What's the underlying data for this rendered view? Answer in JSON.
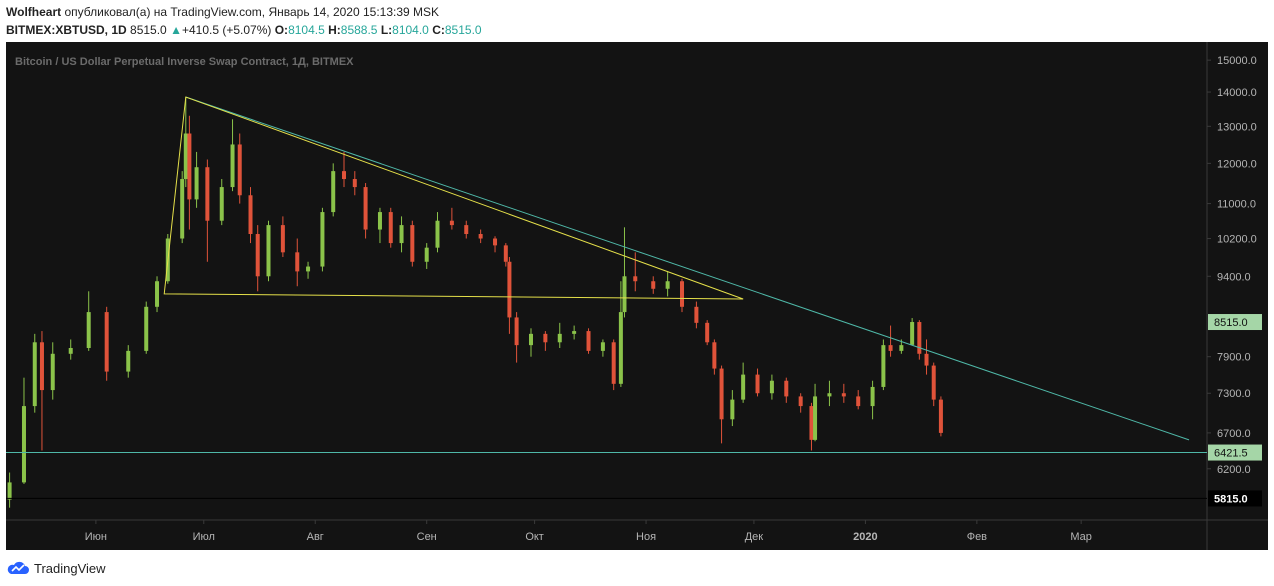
{
  "header": {
    "author": "Wolfheart",
    "published_text": "опубликовал(а) на TradingView.com, Январь 14, 2020 15:13:39 MSK",
    "symbol": "BITMEX:XBTUSD, 1D",
    "last": "8515.0",
    "change_arrow": "▲",
    "change": "+410.5 (+5.07%)",
    "o_label": "O:",
    "o": "8104.5",
    "h_label": "H:",
    "h": "8588.5",
    "l_label": "L:",
    "l": "8104.0",
    "c_label": "C:",
    "c": "8515.0"
  },
  "footer": {
    "brand": "TradingView",
    "logo_icon": "tradingview-cloud-icon"
  },
  "colors": {
    "background": "#131313",
    "up": "#8bc34a",
    "down": "#e0533a",
    "trend_teal": "#4fb8a8",
    "triangle_yellow": "#e5e04a",
    "last_price_bg": "#a5d6a7",
    "support_bg": "#a5d6a7",
    "black_level_bg": "#000000",
    "axis_text": "#b5b5b5",
    "title_text": "#6b6b6b"
  },
  "chart_data": {
    "type": "candlestick",
    "title": "Bitcoin / US Dollar Perpetual Inverse Swap Contract, 1Д, BITMEX",
    "y_scale": "log",
    "ylim": [
      5550,
      15600
    ],
    "y_ticks": [
      6200,
      6700,
      7300,
      7900,
      8515,
      9400,
      10200,
      11000,
      12000,
      13000,
      14000,
      15000
    ],
    "y_tick_labels": [
      "6200.0",
      "6700.0",
      "7300.0",
      "7900.0",
      "8515.0",
      "9400.0",
      "10200.0",
      "11000.0",
      "12000.0",
      "13000.0",
      "14000.0",
      "15000.0"
    ],
    "x_range": [
      "2019-05-07",
      "2020-04-05"
    ],
    "x_ticks": [
      "2019-06-01",
      "2019-07-01",
      "2019-08-01",
      "2019-09-01",
      "2019-10-01",
      "2019-11-01",
      "2019-12-01",
      "2020-01-01",
      "2020-02-01",
      "2020-03-01"
    ],
    "x_tick_labels": [
      "Июн",
      "Июл",
      "Авг",
      "Сен",
      "Окт",
      "Ноя",
      "Дек",
      "2020",
      "Фев",
      "Мар"
    ],
    "candles": [
      {
        "date": "2019-05-08",
        "o": 5800,
        "h": 6150,
        "l": 5700,
        "c": 6020
      },
      {
        "date": "2019-05-12",
        "o": 6020,
        "h": 7550,
        "l": 6000,
        "c": 7100
      },
      {
        "date": "2019-05-15",
        "o": 7100,
        "h": 8300,
        "l": 7000,
        "c": 8150
      },
      {
        "date": "2019-05-17",
        "o": 8150,
        "h": 8350,
        "l": 6450,
        "c": 7350
      },
      {
        "date": "2019-05-20",
        "o": 7350,
        "h": 8150,
        "l": 7200,
        "c": 7950
      },
      {
        "date": "2019-05-25",
        "o": 7950,
        "h": 8200,
        "l": 7850,
        "c": 8050
      },
      {
        "date": "2019-05-30",
        "o": 8050,
        "h": 9100,
        "l": 8000,
        "c": 8700
      },
      {
        "date": "2019-06-04",
        "o": 8700,
        "h": 8800,
        "l": 7500,
        "c": 7650
      },
      {
        "date": "2019-06-10",
        "o": 7650,
        "h": 8100,
        "l": 7550,
        "c": 8000
      },
      {
        "date": "2019-06-15",
        "o": 8000,
        "h": 8900,
        "l": 7950,
        "c": 8800
      },
      {
        "date": "2019-06-18",
        "o": 8800,
        "h": 9400,
        "l": 8700,
        "c": 9300
      },
      {
        "date": "2019-06-21",
        "o": 9300,
        "h": 10300,
        "l": 9250,
        "c": 10200
      },
      {
        "date": "2019-06-25",
        "o": 10200,
        "h": 11800,
        "l": 10100,
        "c": 11600
      },
      {
        "date": "2019-06-26",
        "o": 11600,
        "h": 13850,
        "l": 11400,
        "c": 12800
      },
      {
        "date": "2019-06-27",
        "o": 12800,
        "h": 13300,
        "l": 10400,
        "c": 11100
      },
      {
        "date": "2019-06-29",
        "o": 11100,
        "h": 12300,
        "l": 10900,
        "c": 11900
      },
      {
        "date": "2019-07-02",
        "o": 11900,
        "h": 12100,
        "l": 9700,
        "c": 10600
      },
      {
        "date": "2019-07-06",
        "o": 10600,
        "h": 11600,
        "l": 10500,
        "c": 11400
      },
      {
        "date": "2019-07-09",
        "o": 11400,
        "h": 13200,
        "l": 11300,
        "c": 12500
      },
      {
        "date": "2019-07-11",
        "o": 12500,
        "h": 12800,
        "l": 11000,
        "c": 11200
      },
      {
        "date": "2019-07-14",
        "o": 11200,
        "h": 11400,
        "l": 10100,
        "c": 10300
      },
      {
        "date": "2019-07-16",
        "o": 10300,
        "h": 10500,
        "l": 9100,
        "c": 9400
      },
      {
        "date": "2019-07-19",
        "o": 9400,
        "h": 10600,
        "l": 9300,
        "c": 10500
      },
      {
        "date": "2019-07-23",
        "o": 10500,
        "h": 10700,
        "l": 9800,
        "c": 9900
      },
      {
        "date": "2019-07-27",
        "o": 9900,
        "h": 10200,
        "l": 9200,
        "c": 9500
      },
      {
        "date": "2019-07-30",
        "o": 9500,
        "h": 9700,
        "l": 9350,
        "c": 9600
      },
      {
        "date": "2019-08-03",
        "o": 9600,
        "h": 10900,
        "l": 9500,
        "c": 10800
      },
      {
        "date": "2019-08-06",
        "o": 10800,
        "h": 12000,
        "l": 10700,
        "c": 11800
      },
      {
        "date": "2019-08-09",
        "o": 11800,
        "h": 12300,
        "l": 11400,
        "c": 11600
      },
      {
        "date": "2019-08-12",
        "o": 11600,
        "h": 11800,
        "l": 11200,
        "c": 11400
      },
      {
        "date": "2019-08-15",
        "o": 11400,
        "h": 11500,
        "l": 10200,
        "c": 10400
      },
      {
        "date": "2019-08-19",
        "o": 10400,
        "h": 10900,
        "l": 10100,
        "c": 10800
      },
      {
        "date": "2019-08-22",
        "o": 10800,
        "h": 10900,
        "l": 10000,
        "c": 10100
      },
      {
        "date": "2019-08-25",
        "o": 10100,
        "h": 10700,
        "l": 9900,
        "c": 10500
      },
      {
        "date": "2019-08-28",
        "o": 10500,
        "h": 10600,
        "l": 9600,
        "c": 9700
      },
      {
        "date": "2019-09-01",
        "o": 9700,
        "h": 10100,
        "l": 9550,
        "c": 10000
      },
      {
        "date": "2019-09-04",
        "o": 10000,
        "h": 10800,
        "l": 9900,
        "c": 10600
      },
      {
        "date": "2019-09-08",
        "o": 10600,
        "h": 10900,
        "l": 10400,
        "c": 10500
      },
      {
        "date": "2019-09-12",
        "o": 10500,
        "h": 10600,
        "l": 10200,
        "c": 10300
      },
      {
        "date": "2019-09-16",
        "o": 10300,
        "h": 10400,
        "l": 10100,
        "c": 10200
      },
      {
        "date": "2019-09-20",
        "o": 10200,
        "h": 10250,
        "l": 9900,
        "c": 10050
      },
      {
        "date": "2019-09-23",
        "o": 10050,
        "h": 10100,
        "l": 9600,
        "c": 9700
      },
      {
        "date": "2019-09-24",
        "o": 9700,
        "h": 9800,
        "l": 8300,
        "c": 8600
      },
      {
        "date": "2019-09-26",
        "o": 8600,
        "h": 8700,
        "l": 7800,
        "c": 8100
      },
      {
        "date": "2019-09-30",
        "o": 8100,
        "h": 8400,
        "l": 7900,
        "c": 8300
      },
      {
        "date": "2019-10-04",
        "o": 8300,
        "h": 8350,
        "l": 8000,
        "c": 8150
      },
      {
        "date": "2019-10-08",
        "o": 8150,
        "h": 8500,
        "l": 8050,
        "c": 8300
      },
      {
        "date": "2019-10-12",
        "o": 8300,
        "h": 8450,
        "l": 8200,
        "c": 8350
      },
      {
        "date": "2019-10-16",
        "o": 8350,
        "h": 8400,
        "l": 7950,
        "c": 8000
      },
      {
        "date": "2019-10-20",
        "o": 8000,
        "h": 8200,
        "l": 7900,
        "c": 8150
      },
      {
        "date": "2019-10-23",
        "o": 8150,
        "h": 8200,
        "l": 7350,
        "c": 7450
      },
      {
        "date": "2019-10-25",
        "o": 7450,
        "h": 9300,
        "l": 7400,
        "c": 8700
      },
      {
        "date": "2019-10-26",
        "o": 8700,
        "h": 10450,
        "l": 8600,
        "c": 9400
      },
      {
        "date": "2019-10-29",
        "o": 9400,
        "h": 9900,
        "l": 9100,
        "c": 9300
      },
      {
        "date": "2019-11-03",
        "o": 9300,
        "h": 9400,
        "l": 9050,
        "c": 9150
      },
      {
        "date": "2019-11-07",
        "o": 9150,
        "h": 9500,
        "l": 9000,
        "c": 9300
      },
      {
        "date": "2019-11-11",
        "o": 9300,
        "h": 9350,
        "l": 8700,
        "c": 8800
      },
      {
        "date": "2019-11-15",
        "o": 8800,
        "h": 8900,
        "l": 8400,
        "c": 8500
      },
      {
        "date": "2019-11-18",
        "o": 8500,
        "h": 8550,
        "l": 8100,
        "c": 8150
      },
      {
        "date": "2019-11-20",
        "o": 8150,
        "h": 8200,
        "l": 7600,
        "c": 7700
      },
      {
        "date": "2019-11-22",
        "o": 7700,
        "h": 7750,
        "l": 6550,
        "c": 6900
      },
      {
        "date": "2019-11-25",
        "o": 6900,
        "h": 7350,
        "l": 6800,
        "c": 7200
      },
      {
        "date": "2019-11-28",
        "o": 7200,
        "h": 7800,
        "l": 7150,
        "c": 7600
      },
      {
        "date": "2019-12-02",
        "o": 7600,
        "h": 7700,
        "l": 7250,
        "c": 7300
      },
      {
        "date": "2019-12-06",
        "o": 7300,
        "h": 7600,
        "l": 7200,
        "c": 7500
      },
      {
        "date": "2019-12-10",
        "o": 7500,
        "h": 7550,
        "l": 7150,
        "c": 7250
      },
      {
        "date": "2019-12-14",
        "o": 7250,
        "h": 7300,
        "l": 7000,
        "c": 7100
      },
      {
        "date": "2019-12-17",
        "o": 7100,
        "h": 7150,
        "l": 6450,
        "c": 6600
      },
      {
        "date": "2019-12-18",
        "o": 6600,
        "h": 7450,
        "l": 6580,
        "c": 7250
      },
      {
        "date": "2019-12-22",
        "o": 7250,
        "h": 7500,
        "l": 7100,
        "c": 7300
      },
      {
        "date": "2019-12-26",
        "o": 7300,
        "h": 7450,
        "l": 7150,
        "c": 7250
      },
      {
        "date": "2019-12-30",
        "o": 7250,
        "h": 7350,
        "l": 7050,
        "c": 7100
      },
      {
        "date": "2020-01-03",
        "o": 7100,
        "h": 7500,
        "l": 6900,
        "c": 7400
      },
      {
        "date": "2020-01-06",
        "o": 7400,
        "h": 8200,
        "l": 7350,
        "c": 8100
      },
      {
        "date": "2020-01-08",
        "o": 8100,
        "h": 8450,
        "l": 7900,
        "c": 8000
      },
      {
        "date": "2020-01-11",
        "o": 8000,
        "h": 8200,
        "l": 7950,
        "c": 8100
      },
      {
        "date": "2020-01-14",
        "o": 8104.5,
        "h": 8588.5,
        "l": 8104,
        "c": 8515
      },
      {
        "date": "2020-01-16",
        "o": 8515,
        "h": 8550,
        "l": 7850,
        "c": 7950
      },
      {
        "date": "2020-01-18",
        "o": 7950,
        "h": 8200,
        "l": 7600,
        "c": 7750
      },
      {
        "date": "2020-01-20",
        "o": 7750,
        "h": 7800,
        "l": 7100,
        "c": 7200
      },
      {
        "date": "2020-01-22",
        "o": 7200,
        "h": 7250,
        "l": 6650,
        "c": 6700
      }
    ],
    "drawings": [
      {
        "type": "trendline",
        "color": "teal",
        "from": {
          "date": "2019-06-26",
          "value": 13850
        },
        "to": {
          "date": "2020-03-31",
          "value": 6600
        }
      },
      {
        "type": "triangle",
        "color": "yellow",
        "points": [
          {
            "date": "2019-06-26",
            "value": 13850
          },
          {
            "date": "2019-11-28",
            "value": 8950
          },
          {
            "date": "2019-06-20",
            "value": 9050
          }
        ]
      },
      {
        "type": "horizontal_line",
        "color": "teal",
        "value": 6421.5
      },
      {
        "type": "horizontal_line",
        "color": "black",
        "value": 5815
      }
    ],
    "price_labels": [
      {
        "value": 8515,
        "text": "8515.0",
        "style": "green"
      },
      {
        "value": 6421.5,
        "text": "6421.5",
        "style": "green"
      },
      {
        "value": 5815,
        "text": "5815.0",
        "style": "black"
      }
    ]
  }
}
